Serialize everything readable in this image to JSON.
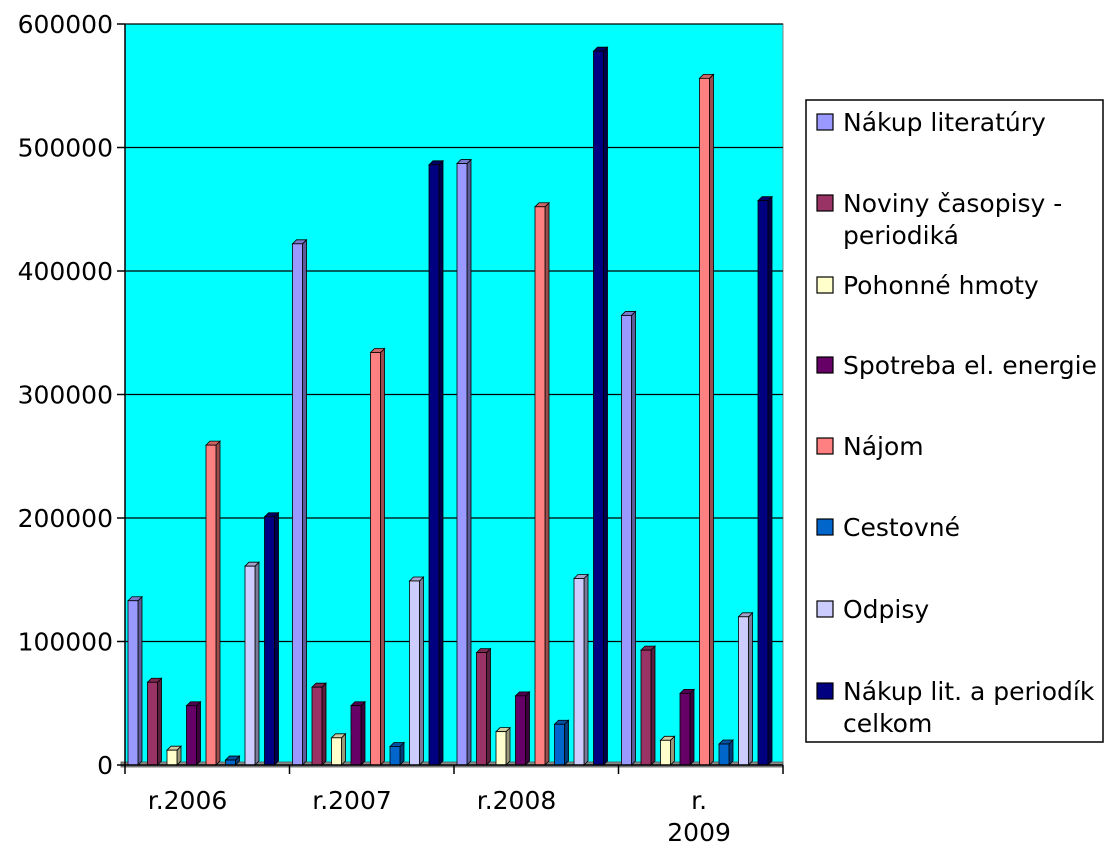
{
  "chart_data": {
    "type": "bar",
    "categories": [
      "r.2006",
      "r.2007",
      "r.2008",
      "r. 2009"
    ],
    "ylim": [
      0,
      600000
    ],
    "yticks": [
      0,
      100000,
      200000,
      300000,
      400000,
      500000,
      600000
    ],
    "ytick_labels": [
      "0",
      "100000",
      "200000",
      "300000",
      "400000",
      "500000",
      "600000"
    ],
    "grid": true,
    "legend_position": "right",
    "plot_background": "#00ffff",
    "series": [
      {
        "name": "Nákup literatúry",
        "color": "#9999ff",
        "values": [
          133000,
          422000,
          487000,
          364000
        ]
      },
      {
        "name": "Noviny časopisy - periodiká",
        "color": "#993366",
        "values": [
          67000,
          63000,
          91000,
          93000
        ]
      },
      {
        "name": "Pohonné hmoty",
        "color": "#ffffcc",
        "values": [
          12000,
          22000,
          27000,
          20000
        ]
      },
      {
        "name": "Spotreba el. energie",
        "color": "#660066",
        "values": [
          48000,
          48000,
          56000,
          58000
        ]
      },
      {
        "name": "Nájom",
        "color": "#ff8080",
        "values": [
          259000,
          334000,
          452000,
          556000
        ]
      },
      {
        "name": "Cestovné",
        "color": "#0066cc",
        "values": [
          4000,
          15000,
          33000,
          17000
        ]
      },
      {
        "name": "Odpisy",
        "color": "#ccccff",
        "values": [
          161000,
          149000,
          151000,
          120000
        ]
      },
      {
        "name": "Nákup lit. a periodík celkom",
        "color": "#000080",
        "values": [
          201000,
          486000,
          578000,
          457000
        ]
      }
    ]
  }
}
